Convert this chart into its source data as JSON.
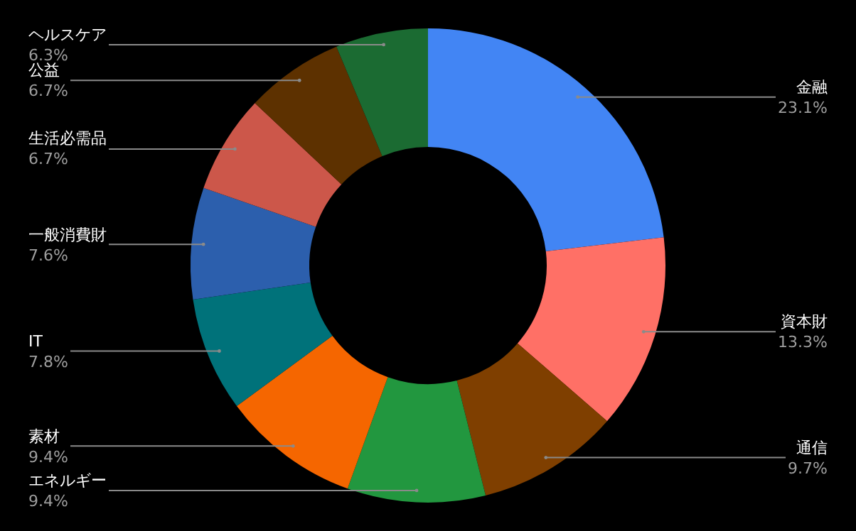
{
  "chart_data": {
    "type": "donut",
    "categories": [
      "金融",
      "資本財",
      "通信",
      "エネルギー",
      "素材",
      "IT",
      "一般消費財",
      "生活必需品",
      "公益",
      "ヘルスケア"
    ],
    "values": [
      23.1,
      13.3,
      9.7,
      9.4,
      9.4,
      7.8,
      7.6,
      6.7,
      6.7,
      6.3
    ],
    "value_labels": [
      "23.1%",
      "13.3%",
      "9.7%",
      "9.4%",
      "9.4%",
      "7.8%",
      "7.6%",
      "6.7%",
      "6.7%",
      "6.3%"
    ],
    "colors": [
      "#4285f4",
      "#ff7066",
      "#7f3f00",
      "#22973f",
      "#f56600",
      "#00727a",
      "#2c5fad",
      "#cc574a",
      "#5d3100",
      "#1b6b32"
    ],
    "legend": false
  }
}
